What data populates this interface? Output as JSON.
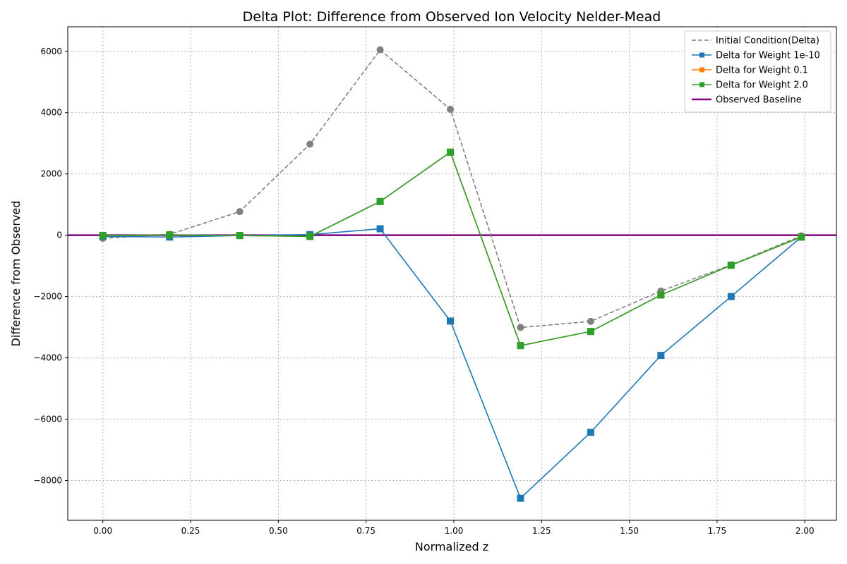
{
  "chart_data": {
    "type": "line",
    "title": "Delta Plot: Difference from Observed Ion Velocity Nelder-Mead",
    "xlabel": "Normalized z",
    "ylabel": "Difference from Observed",
    "xlim": [
      -0.1,
      2.09
    ],
    "ylim": [
      -9300,
      6800
    ],
    "xticks": [
      0.0,
      0.25,
      0.5,
      0.75,
      1.0,
      1.25,
      1.5,
      1.75,
      2.0
    ],
    "xtick_labels": [
      "0.00",
      "0.25",
      "0.50",
      "0.75",
      "1.00",
      "1.25",
      "1.50",
      "1.75",
      "2.00"
    ],
    "yticks": [
      -8000,
      -6000,
      -4000,
      -2000,
      0,
      2000,
      4000,
      6000
    ],
    "ytick_labels": [
      "−8000",
      "−6000",
      "−4000",
      "−2000",
      "0",
      "2000",
      "4000",
      "6000"
    ],
    "grid": true,
    "legend_position": "top-right",
    "x": [
      0.0,
      0.19,
      0.39,
      0.59,
      0.79,
      0.99,
      1.19,
      1.39,
      1.59,
      1.79,
      1.99
    ],
    "series": [
      {
        "name": "Initial Condition(Delta)",
        "color": "#808080",
        "dash": true,
        "marker": "circle",
        "values": [
          -100,
          30,
          770,
          2970,
          6050,
          4110,
          -3010,
          -2810,
          -1820,
          -970,
          -20
        ]
      },
      {
        "name": "Delta for Weight 1e-10",
        "color": "#1f77b4",
        "dash": false,
        "marker": "square",
        "values": [
          -40,
          -60,
          -10,
          20,
          210,
          -2800,
          -8580,
          -6430,
          -3920,
          -2000,
          -60
        ]
      },
      {
        "name": "Delta for Weight 0.1",
        "color": "#ff7f0e",
        "dash": false,
        "marker": "square",
        "values": [
          -10,
          10,
          -10,
          -40,
          1100,
          2710,
          -3600,
          -3140,
          -1950,
          -980,
          -60
        ]
      },
      {
        "name": "Delta for Weight 2.0",
        "color": "#2ca02c",
        "dash": false,
        "marker": "square",
        "values": [
          -10,
          10,
          -10,
          -40,
          1100,
          2710,
          -3600,
          -3140,
          -1950,
          -980,
          -60
        ]
      },
      {
        "name": "Observed Baseline",
        "color": "#800080",
        "baseline": true,
        "value": 0
      }
    ]
  }
}
